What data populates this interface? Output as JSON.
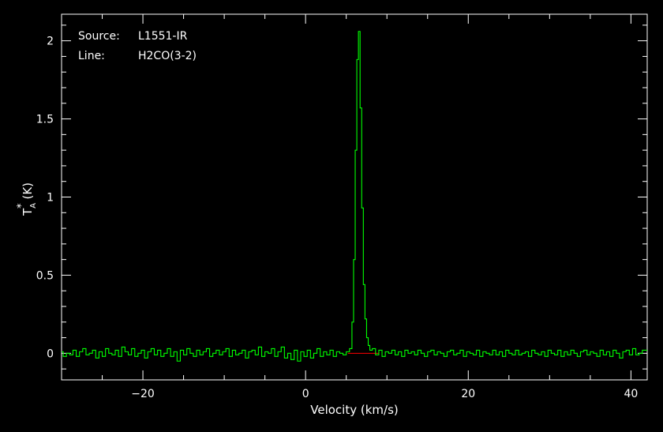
{
  "chart_data": {
    "type": "line",
    "style": "step",
    "annotations": [
      {
        "label": "Source:",
        "value": "L1551-IR"
      },
      {
        "label": "Line:",
        "value": "H2CO(3-2)"
      }
    ],
    "xlabel": "Velocity (km/s)",
    "ylabel": "T*A (K)",
    "ylabel_parts": {
      "base": "T",
      "sub": "A",
      "sup": "*",
      "unit": "(K)"
    },
    "xlim": [
      -30,
      42
    ],
    "ylim": [
      -0.17,
      2.17
    ],
    "xticks": [
      -20,
      0,
      20,
      40
    ],
    "xtick_labels": [
      "−20",
      "0",
      "20",
      "40"
    ],
    "yticks": [
      0,
      0.5,
      1,
      1.5,
      2
    ],
    "ytick_labels": [
      "0",
      "0.5",
      "1",
      "1.5",
      "2"
    ],
    "grid": false,
    "colors": {
      "background": "#000000",
      "axes": "#ffffff",
      "spectrum": "#00ff00",
      "baseline": "#ff0000"
    },
    "baseline": {
      "y": 0,
      "x": [
        5.2,
        9.0
      ]
    },
    "peak": {
      "x": 6.6,
      "y": 2.06
    },
    "series": [
      {
        "values": [
          [
            -30.0,
            0.01
          ],
          [
            -29.6,
            -0.02
          ],
          [
            -29.2,
            0.0
          ],
          [
            -28.8,
            -0.01
          ],
          [
            -28.4,
            0.02
          ],
          [
            -28.0,
            -0.02
          ],
          [
            -27.6,
            0.01
          ],
          [
            -27.2,
            0.03
          ],
          [
            -26.8,
            -0.01
          ],
          [
            -26.4,
            0.0
          ],
          [
            -26.0,
            0.02
          ],
          [
            -25.6,
            -0.03
          ],
          [
            -25.2,
            0.01
          ],
          [
            -24.8,
            -0.02
          ],
          [
            -24.4,
            0.03
          ],
          [
            -24.0,
            0.0
          ],
          [
            -23.6,
            -0.01
          ],
          [
            -23.2,
            0.02
          ],
          [
            -22.8,
            -0.02
          ],
          [
            -22.4,
            0.04
          ],
          [
            -22.0,
            0.01
          ],
          [
            -21.6,
            -0.01
          ],
          [
            -21.2,
            0.03
          ],
          [
            -20.8,
            -0.02
          ],
          [
            -20.4,
            0.0
          ],
          [
            -20.0,
            0.02
          ],
          [
            -19.6,
            -0.03
          ],
          [
            -19.2,
            0.01
          ],
          [
            -18.8,
            0.03
          ],
          [
            -18.4,
            -0.01
          ],
          [
            -18.0,
            0.02
          ],
          [
            -17.6,
            -0.02
          ],
          [
            -17.2,
            0.0
          ],
          [
            -16.8,
            0.03
          ],
          [
            -16.4,
            -0.02
          ],
          [
            -16.0,
            0.01
          ],
          [
            -15.6,
            -0.05
          ],
          [
            -15.2,
            0.02
          ],
          [
            -14.8,
            -0.01
          ],
          [
            -14.4,
            0.03
          ],
          [
            -14.0,
            0.0
          ],
          [
            -13.6,
            -0.02
          ],
          [
            -13.2,
            0.02
          ],
          [
            -12.8,
            -0.01
          ],
          [
            -12.4,
            0.01
          ],
          [
            -12.0,
            0.03
          ],
          [
            -11.6,
            -0.02
          ],
          [
            -11.2,
            0.0
          ],
          [
            -10.8,
            0.02
          ],
          [
            -10.4,
            -0.01
          ],
          [
            -10.0,
            0.01
          ],
          [
            -9.6,
            0.03
          ],
          [
            -9.2,
            -0.02
          ],
          [
            -8.8,
            0.02
          ],
          [
            -8.4,
            -0.01
          ],
          [
            -8.0,
            0.0
          ],
          [
            -7.6,
            0.02
          ],
          [
            -7.2,
            -0.03
          ],
          [
            -6.8,
            0.01
          ],
          [
            -6.4,
            0.02
          ],
          [
            -6.0,
            -0.01
          ],
          [
            -5.6,
            0.04
          ],
          [
            -5.2,
            -0.02
          ],
          [
            -4.8,
            0.01
          ],
          [
            -4.4,
            0.0
          ],
          [
            -4.0,
            0.03
          ],
          [
            -3.6,
            -0.02
          ],
          [
            -3.2,
            0.01
          ],
          [
            -2.8,
            0.04
          ],
          [
            -2.4,
            -0.03
          ],
          [
            -2.0,
            0.0
          ],
          [
            -1.6,
            -0.04
          ],
          [
            -1.2,
            0.02
          ],
          [
            -0.8,
            -0.05
          ],
          [
            -0.4,
            0.01
          ],
          [
            0.0,
            -0.02
          ],
          [
            0.4,
            0.02
          ],
          [
            0.8,
            -0.03
          ],
          [
            1.2,
            0.0
          ],
          [
            1.6,
            0.03
          ],
          [
            2.0,
            -0.02
          ],
          [
            2.4,
            0.01
          ],
          [
            2.8,
            -0.01
          ],
          [
            3.2,
            0.02
          ],
          [
            3.6,
            -0.02
          ],
          [
            4.0,
            0.01
          ],
          [
            4.4,
            0.0
          ],
          [
            4.8,
            -0.01
          ],
          [
            5.2,
            0.01
          ],
          [
            5.6,
            0.03
          ],
          [
            5.8,
            0.2
          ],
          [
            6.0,
            0.6
          ],
          [
            6.2,
            1.3
          ],
          [
            6.4,
            1.88
          ],
          [
            6.6,
            2.06
          ],
          [
            6.8,
            1.57
          ],
          [
            7.0,
            0.93
          ],
          [
            7.2,
            0.44
          ],
          [
            7.4,
            0.22
          ],
          [
            7.6,
            0.1
          ],
          [
            7.8,
            0.05
          ],
          [
            8.0,
            0.02
          ],
          [
            8.4,
            0.03
          ],
          [
            8.8,
            -0.01
          ],
          [
            9.2,
            0.02
          ],
          [
            9.6,
            -0.02
          ],
          [
            10.0,
            0.01
          ],
          [
            10.4,
            0.0
          ],
          [
            10.8,
            0.02
          ],
          [
            11.2,
            -0.01
          ],
          [
            11.6,
            0.01
          ],
          [
            12.0,
            -0.02
          ],
          [
            12.4,
            0.02
          ],
          [
            12.8,
            0.0
          ],
          [
            13.2,
            0.01
          ],
          [
            13.6,
            -0.01
          ],
          [
            14.0,
            0.02
          ],
          [
            14.4,
            0.0
          ],
          [
            14.8,
            -0.02
          ],
          [
            15.2,
            0.01
          ],
          [
            15.6,
            0.02
          ],
          [
            16.0,
            -0.01
          ],
          [
            16.4,
            0.01
          ],
          [
            16.8,
            0.0
          ],
          [
            17.2,
            -0.02
          ],
          [
            17.6,
            0.01
          ],
          [
            18.0,
            0.02
          ],
          [
            18.4,
            -0.01
          ],
          [
            18.8,
            0.0
          ],
          [
            19.2,
            0.02
          ],
          [
            19.6,
            -0.02
          ],
          [
            20.0,
            0.01
          ],
          [
            20.4,
            0.0
          ],
          [
            20.8,
            -0.01
          ],
          [
            21.2,
            0.02
          ],
          [
            21.6,
            -0.02
          ],
          [
            22.0,
            0.01
          ],
          [
            22.4,
            0.0
          ],
          [
            22.8,
            -0.01
          ],
          [
            23.2,
            0.02
          ],
          [
            23.6,
            -0.01
          ],
          [
            24.0,
            0.01
          ],
          [
            24.4,
            -0.02
          ],
          [
            24.8,
            0.02
          ],
          [
            25.2,
            0.0
          ],
          [
            25.6,
            -0.01
          ],
          [
            26.0,
            0.02
          ],
          [
            26.4,
            -0.01
          ],
          [
            26.8,
            0.0
          ],
          [
            27.2,
            0.01
          ],
          [
            27.6,
            -0.02
          ],
          [
            28.0,
            0.02
          ],
          [
            28.4,
            0.0
          ],
          [
            28.8,
            -0.01
          ],
          [
            29.2,
            0.01
          ],
          [
            29.6,
            -0.02
          ],
          [
            30.0,
            0.02
          ],
          [
            30.4,
            0.0
          ],
          [
            30.8,
            -0.01
          ],
          [
            31.2,
            0.02
          ],
          [
            31.6,
            -0.02
          ],
          [
            32.0,
            0.01
          ],
          [
            32.4,
            -0.01
          ],
          [
            32.8,
            0.02
          ],
          [
            33.2,
            0.0
          ],
          [
            33.6,
            -0.02
          ],
          [
            34.0,
            0.01
          ],
          [
            34.4,
            0.02
          ],
          [
            34.8,
            -0.01
          ],
          [
            35.2,
            0.01
          ],
          [
            35.6,
            0.0
          ],
          [
            36.0,
            -0.02
          ],
          [
            36.4,
            0.02
          ],
          [
            36.8,
            -0.01
          ],
          [
            37.2,
            0.01
          ],
          [
            37.6,
            -0.02
          ],
          [
            38.0,
            0.02
          ],
          [
            38.4,
            0.0
          ],
          [
            38.8,
            -0.03
          ],
          [
            39.2,
            0.01
          ],
          [
            39.6,
            0.02
          ],
          [
            40.0,
            -0.01
          ],
          [
            40.4,
            0.03
          ],
          [
            40.8,
            -0.01
          ],
          [
            41.2,
            0.0
          ],
          [
            41.6,
            0.02
          ]
        ]
      }
    ]
  }
}
